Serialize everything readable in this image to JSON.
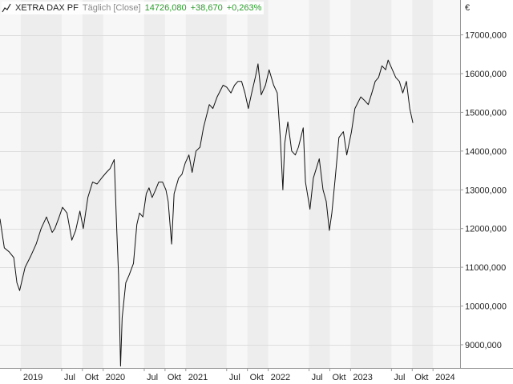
{
  "legend": {
    "name": "XETRA DAX PF",
    "mode": "Täglich [Close]",
    "last": "14726,080",
    "change": "+38,670",
    "change_pct": "+0,263%",
    "icon": "line-chart-icon",
    "positive_color": "#2e9b2e"
  },
  "chart_data": {
    "type": "line",
    "title": "",
    "xlabel": "",
    "ylabel": "",
    "unit": "€",
    "ylim": [
      8400,
      17900
    ],
    "xlim": [
      "2018-10-01",
      "2024-04-30"
    ],
    "grid": true,
    "legend_position": "top-left",
    "y_ticks": [
      "17000,000",
      "16000,000",
      "15000,000",
      "14000,000",
      "13000,000",
      "12000,000",
      "11000,000",
      "10000,000",
      "9000,000"
    ],
    "y_tick_values": [
      17000,
      16000,
      15000,
      14000,
      13000,
      12000,
      11000,
      10000,
      9000
    ],
    "x_ticks": [
      {
        "label": "2019",
        "date": "2019-01-01"
      },
      {
        "label": "Jul",
        "date": "2019-07-01"
      },
      {
        "label": "Okt",
        "date": "2019-10-01"
      },
      {
        "label": "2020",
        "date": "2020-01-01"
      },
      {
        "label": "Jul",
        "date": "2020-07-01"
      },
      {
        "label": "Okt",
        "date": "2020-10-01"
      },
      {
        "label": "2021",
        "date": "2021-01-01"
      },
      {
        "label": "Jul",
        "date": "2021-07-01"
      },
      {
        "label": "Okt",
        "date": "2021-10-01"
      },
      {
        "label": "2022",
        "date": "2022-01-01"
      },
      {
        "label": "Jul",
        "date": "2022-07-01"
      },
      {
        "label": "Okt",
        "date": "2022-10-01"
      },
      {
        "label": "2023",
        "date": "2023-01-01"
      },
      {
        "label": "Jul",
        "date": "2023-07-01"
      },
      {
        "label": "Okt",
        "date": "2023-10-01"
      },
      {
        "label": "2024",
        "date": "2024-01-01"
      }
    ],
    "series": [
      {
        "color": "#111111",
        "x": [
          "2018-10-01",
          "2018-10-20",
          "2018-11-10",
          "2018-12-01",
          "2018-12-15",
          "2018-12-27",
          "2019-01-20",
          "2019-02-15",
          "2019-03-10",
          "2019-04-01",
          "2019-04-25",
          "2019-05-20",
          "2019-06-01",
          "2019-06-20",
          "2019-07-05",
          "2019-07-25",
          "2019-08-15",
          "2019-09-01",
          "2019-09-20",
          "2019-10-05",
          "2019-10-25",
          "2019-11-15",
          "2019-12-05",
          "2019-12-25",
          "2020-01-15",
          "2020-02-01",
          "2020-02-19",
          "2020-03-01",
          "2020-03-09",
          "2020-03-18",
          "2020-03-25",
          "2020-04-10",
          "2020-04-25",
          "2020-05-14",
          "2020-05-29",
          "2020-06-10",
          "2020-06-25",
          "2020-07-10",
          "2020-07-22",
          "2020-08-05",
          "2020-08-20",
          "2020-09-03",
          "2020-09-20",
          "2020-10-05",
          "2020-10-15",
          "2020-10-30",
          "2020-11-10",
          "2020-11-30",
          "2020-12-15",
          "2020-12-30",
          "2021-01-15",
          "2021-01-29",
          "2021-02-15",
          "2021-03-05",
          "2021-03-20",
          "2021-04-15",
          "2021-05-01",
          "2021-05-20",
          "2021-06-15",
          "2021-07-01",
          "2021-07-20",
          "2021-08-05",
          "2021-08-20",
          "2021-09-05",
          "2021-09-20",
          "2021-10-05",
          "2021-10-20",
          "2021-11-05",
          "2021-11-17",
          "2021-12-01",
          "2021-12-20",
          "2022-01-05",
          "2022-01-25",
          "2022-02-10",
          "2022-02-24",
          "2022-03-07",
          "2022-03-15",
          "2022-03-29",
          "2022-04-15",
          "2022-05-01",
          "2022-05-15",
          "2022-06-05",
          "2022-06-15",
          "2022-07-05",
          "2022-07-20",
          "2022-08-15",
          "2022-09-01",
          "2022-09-15",
          "2022-09-29",
          "2022-10-10",
          "2022-10-25",
          "2022-11-10",
          "2022-11-30",
          "2022-12-15",
          "2023-01-05",
          "2023-01-20",
          "2023-02-15",
          "2023-03-05",
          "2023-03-20",
          "2023-04-05",
          "2023-04-20",
          "2023-05-05",
          "2023-05-20",
          "2023-06-05",
          "2023-06-16",
          "2023-07-05",
          "2023-07-20",
          "2023-08-05",
          "2023-08-20",
          "2023-09-05",
          "2023-09-20",
          "2023-10-04"
        ],
        "y": [
          12250,
          11500,
          11400,
          11250,
          10600,
          10400,
          11000,
          11300,
          11600,
          12000,
          12300,
          11900,
          12000,
          12300,
          12550,
          12400,
          11700,
          11950,
          12450,
          12000,
          12800,
          13200,
          13150,
          13300,
          13450,
          13550,
          13780,
          12000,
          10800,
          8450,
          9700,
          10600,
          10800,
          11100,
          12100,
          12400,
          12300,
          12900,
          13050,
          12800,
          13000,
          13200,
          13200,
          13000,
          12700,
          11600,
          12900,
          13300,
          13400,
          13700,
          13900,
          13450,
          14000,
          14100,
          14600,
          15200,
          15100,
          15400,
          15700,
          15650,
          15500,
          15700,
          15800,
          15800,
          15500,
          15100,
          15500,
          15900,
          16250,
          15450,
          15700,
          16100,
          15700,
          15500,
          14300,
          13000,
          14200,
          14750,
          14000,
          13900,
          14100,
          14600,
          13200,
          12500,
          13300,
          13800,
          13000,
          12700,
          11950,
          12400,
          13300,
          14350,
          14500,
          13900,
          14500,
          15100,
          15400,
          15300,
          15200,
          15500,
          15800,
          15900,
          16200,
          16100,
          16350,
          16100,
          15900,
          15800,
          15500,
          15800,
          15100,
          14726
        ]
      }
    ]
  }
}
